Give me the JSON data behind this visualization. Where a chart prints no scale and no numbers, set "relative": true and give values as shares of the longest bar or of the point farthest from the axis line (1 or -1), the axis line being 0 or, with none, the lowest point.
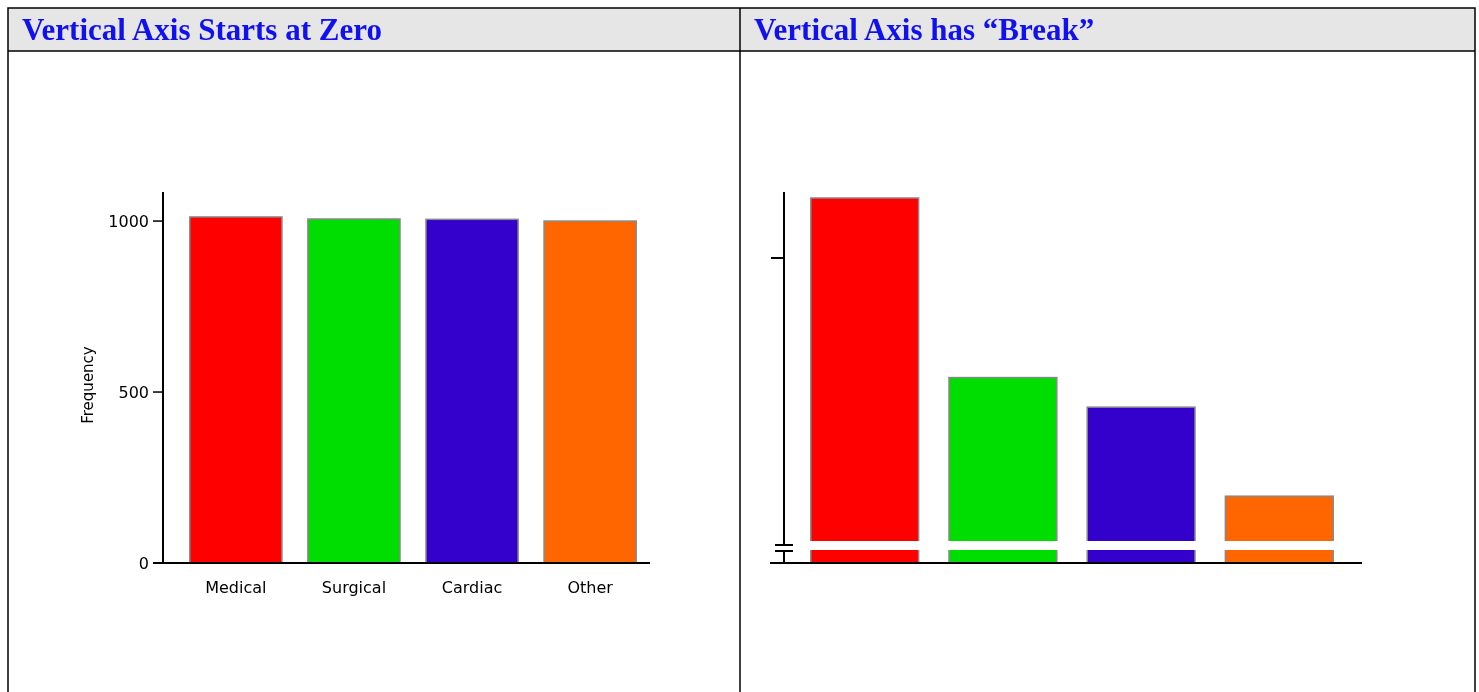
{
  "chart_data": [
    {
      "type": "bar",
      "title": "Vertical Axis Starts at Zero",
      "ylabel": "Frequency",
      "categories": [
        "Medical",
        "Surgical",
        "Cardiac",
        "Other"
      ],
      "values": [
        1012,
        1006,
        1005,
        1000
      ],
      "colors": [
        "#ff0000",
        "#00dd00",
        "#3300cc",
        "#ff6600"
      ],
      "ylim": [
        0,
        1085
      ],
      "yticks": [
        0,
        500,
        1000
      ]
    },
    {
      "type": "bar",
      "title": "Vertical Axis has “Break”",
      "relative": true,
      "categories": [
        null,
        null,
        null,
        null
      ],
      "values": [
        1,
        0.508,
        0.427,
        0.183
      ],
      "colors": [
        "#ff0000",
        "#00dd00",
        "#3300cc",
        "#ff6600"
      ]
    }
  ]
}
